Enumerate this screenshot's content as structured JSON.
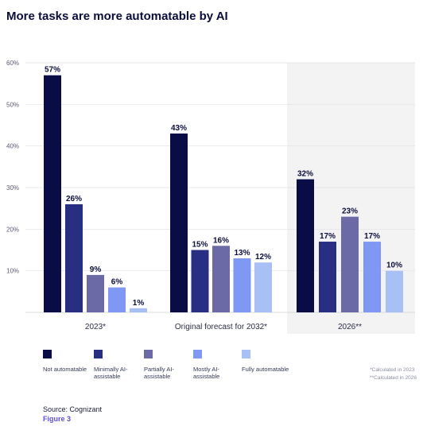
{
  "title": "More tasks are more automatable by AI",
  "chart_data": {
    "type": "bar",
    "categories": [
      "2023*",
      "Original forecast for 2032*",
      "2026**"
    ],
    "series": [
      {
        "name": "Not automatable",
        "color": "#0a0c45",
        "values": [
          57,
          43,
          32
        ]
      },
      {
        "name": "Minimally AI-assistable",
        "color": "#282e82",
        "values": [
          26,
          15,
          17
        ]
      },
      {
        "name": "Partially AI-assistable",
        "color": "#6b6aa6",
        "values": [
          9,
          16,
          23
        ]
      },
      {
        "name": "Mostly AI-assistable",
        "color": "#7f98f3",
        "values": [
          6,
          13,
          17
        ]
      },
      {
        "name": "Fully automatable",
        "color": "#a9c0f7",
        "values": [
          1,
          12,
          10
        ]
      }
    ],
    "value_labels": [
      [
        "57%",
        "26%",
        "9%",
        "6%",
        "1%"
      ],
      [
        "43%",
        "15%",
        "16%",
        "13%",
        "12%"
      ],
      [
        "32%",
        "17%",
        "23%",
        "17%",
        "10%"
      ]
    ],
    "yticks": [
      "10%",
      "20%",
      "30%",
      "40%",
      "50%",
      "60%"
    ],
    "ytick_values": [
      10,
      20,
      30,
      40,
      50,
      60
    ],
    "ylim": [
      0,
      60
    ],
    "grid": true,
    "highlight_group": "2026**",
    "highlight_color": "#f3f3f3"
  },
  "legend": [
    {
      "label": "Not automatable",
      "color": "#0a0c45"
    },
    {
      "label": "Minimally AI-assistable",
      "color": "#282e82"
    },
    {
      "label": "Partially AI-assistable",
      "color": "#6b6aa6"
    },
    {
      "label": "Mostly AI-assistable",
      "color": "#7f98f3"
    },
    {
      "label": "Fully automatable",
      "color": "#a9c0f7"
    }
  ],
  "notes": [
    "*Calculated in 2023",
    "**Calculated in 2026"
  ],
  "source": "Source: Cognizant",
  "figure_label": "Figure 3"
}
